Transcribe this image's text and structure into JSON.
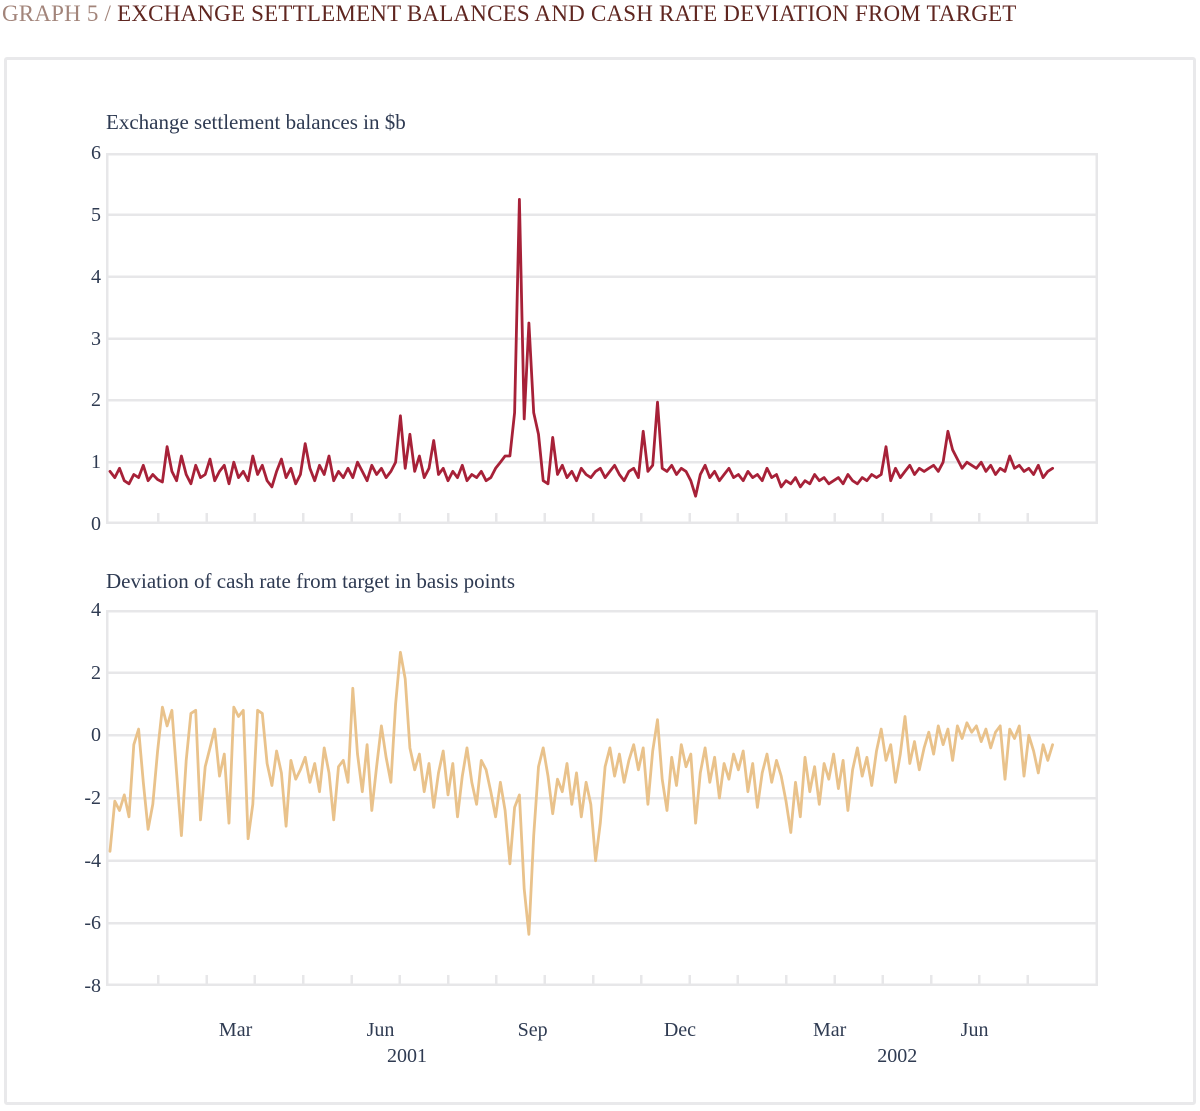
{
  "title": {
    "prefix": "GRAPH 5 /",
    "main": "EXCHANGE SETTLEMENT BALANCES AND CASH RATE DEVIATION FROM TARGET"
  },
  "colors": {
    "title_prefix": "#A2847A",
    "title_main": "#5F2620",
    "axis_text": "#2F3B52",
    "grid": "#E7E7E9",
    "frame_border": "#E9E9EB",
    "series_top": "#A72138",
    "series_bottom": "#E9C28B"
  },
  "x_axis": {
    "unit": "months, Jan 2001 - Aug 2002",
    "minor_tick_months_from_jan2001": [
      1,
      2,
      3,
      4,
      5,
      6,
      7,
      8,
      9,
      10,
      11,
      12,
      13,
      14,
      15,
      16,
      17,
      18,
      19
    ],
    "month_labels": [
      {
        "text": "Mar",
        "m": 2.6
      },
      {
        "text": "Jun",
        "m": 5.6
      },
      {
        "text": "Sep",
        "m": 8.75
      },
      {
        "text": "Dec",
        "m": 11.8
      },
      {
        "text": "Mar",
        "m": 14.9
      },
      {
        "text": "Jun",
        "m": 17.9
      }
    ],
    "year_labels": [
      {
        "text": "2001",
        "m": 6.15
      },
      {
        "text": "2002",
        "m": 16.3
      }
    ]
  },
  "chart_data": [
    {
      "type": "line",
      "title": "Exchange settlement balances in $b",
      "ylim": [
        0,
        6
      ],
      "yticks": [
        6,
        5,
        4,
        3,
        2,
        1,
        0
      ],
      "grid": true,
      "legend": "none",
      "x_unit": "days since 1 Jan 2001",
      "x_start_day": 0,
      "x_step_days": 3,
      "series": [
        {
          "name": "Exchange settlement balances ($b)",
          "color_key": "series_top",
          "values": [
            0.85,
            0.75,
            0.9,
            0.7,
            0.65,
            0.8,
            0.75,
            0.95,
            0.7,
            0.8,
            0.72,
            0.68,
            1.25,
            0.85,
            0.7,
            1.1,
            0.8,
            0.65,
            0.95,
            0.75,
            0.8,
            1.05,
            0.7,
            0.85,
            0.95,
            0.65,
            1.0,
            0.75,
            0.85,
            0.7,
            1.1,
            0.8,
            0.95,
            0.7,
            0.6,
            0.85,
            1.05,
            0.75,
            0.9,
            0.65,
            0.8,
            1.3,
            0.9,
            0.7,
            0.95,
            0.8,
            1.1,
            0.7,
            0.85,
            0.75,
            0.9,
            0.75,
            1.0,
            0.85,
            0.7,
            0.95,
            0.8,
            0.9,
            0.75,
            0.85,
            1.0,
            1.75,
            0.9,
            1.45,
            0.85,
            1.1,
            0.75,
            0.9,
            1.35,
            0.8,
            0.9,
            0.7,
            0.85,
            0.75,
            0.95,
            0.7,
            0.8,
            0.75,
            0.85,
            0.7,
            0.75,
            0.9,
            1.0,
            1.1,
            1.1,
            1.8,
            5.25,
            1.7,
            3.25,
            1.8,
            1.45,
            0.7,
            0.65,
            1.4,
            0.8,
            0.95,
            0.75,
            0.85,
            0.7,
            0.9,
            0.8,
            0.75,
            0.85,
            0.9,
            0.75,
            0.85,
            0.95,
            0.8,
            0.7,
            0.85,
            0.9,
            0.75,
            1.5,
            0.85,
            0.95,
            1.97,
            0.9,
            0.85,
            0.95,
            0.8,
            0.9,
            0.85,
            0.7,
            0.45,
            0.8,
            0.95,
            0.75,
            0.85,
            0.7,
            0.8,
            0.9,
            0.75,
            0.8,
            0.7,
            0.85,
            0.75,
            0.8,
            0.7,
            0.9,
            0.75,
            0.8,
            0.6,
            0.7,
            0.65,
            0.75,
            0.6,
            0.7,
            0.65,
            0.8,
            0.7,
            0.75,
            0.65,
            0.7,
            0.75,
            0.65,
            0.8,
            0.7,
            0.65,
            0.75,
            0.7,
            0.8,
            0.75,
            0.8,
            1.25,
            0.7,
            0.9,
            0.75,
            0.85,
            0.95,
            0.8,
            0.9,
            0.85,
            0.9,
            0.95,
            0.85,
            1.0,
            1.5,
            1.2,
            1.05,
            0.9,
            1.0,
            0.95,
            0.9,
            1.0,
            0.85,
            0.95,
            0.8,
            0.9,
            0.85,
            1.1,
            0.9,
            0.95,
            0.85,
            0.9,
            0.8,
            0.95,
            0.75,
            0.85,
            0.9
          ]
        }
      ]
    },
    {
      "type": "line",
      "title": "Deviation of cash rate from target in basis points",
      "ylim": [
        -8,
        4
      ],
      "yticks": [
        4,
        2,
        0,
        -2,
        -4,
        -6,
        -8
      ],
      "grid": true,
      "legend": "none",
      "x_unit": "days since 1 Jan 2001",
      "x_start_day": 0,
      "x_step_days": 3,
      "series": [
        {
          "name": "Cash rate deviation from target (basis points)",
          "color_key": "series_bottom",
          "values": [
            -3.7,
            -2.1,
            -2.4,
            -1.9,
            -2.6,
            -0.3,
            0.2,
            -1.5,
            -3.0,
            -2.2,
            -0.5,
            0.9,
            0.3,
            0.8,
            -1.2,
            -3.2,
            -0.8,
            0.7,
            0.8,
            -2.7,
            -1.0,
            -0.4,
            0.2,
            -1.3,
            -0.6,
            -2.8,
            0.9,
            0.6,
            0.8,
            -3.3,
            -2.2,
            0.8,
            0.7,
            -0.9,
            -1.6,
            -0.5,
            -1.2,
            -2.9,
            -0.8,
            -1.4,
            -1.1,
            -0.7,
            -1.5,
            -0.9,
            -1.8,
            -0.4,
            -1.2,
            -2.7,
            -1.0,
            -0.8,
            -1.5,
            1.5,
            -0.6,
            -1.8,
            -0.3,
            -2.4,
            -1.0,
            0.3,
            -0.7,
            -1.5,
            1.0,
            2.65,
            1.8,
            -0.4,
            -1.1,
            -0.6,
            -1.8,
            -0.9,
            -2.3,
            -1.2,
            -0.5,
            -1.9,
            -0.9,
            -2.6,
            -1.3,
            -0.4,
            -1.5,
            -2.2,
            -0.8,
            -1.1,
            -1.8,
            -2.6,
            -1.5,
            -2.4,
            -4.1,
            -2.3,
            -1.9,
            -4.9,
            -6.35,
            -3.2,
            -1.0,
            -0.4,
            -1.3,
            -2.5,
            -1.4,
            -1.8,
            -0.9,
            -2.2,
            -1.2,
            -2.6,
            -1.5,
            -2.2,
            -4.0,
            -2.8,
            -1.0,
            -0.4,
            -1.3,
            -0.6,
            -1.5,
            -0.8,
            -0.3,
            -1.1,
            -0.4,
            -2.2,
            -0.5,
            0.5,
            -1.4,
            -2.4,
            -0.7,
            -1.6,
            -0.3,
            -1.0,
            -0.6,
            -2.8,
            -1.2,
            -0.4,
            -1.5,
            -0.7,
            -2.0,
            -0.9,
            -1.4,
            -0.6,
            -1.1,
            -0.5,
            -1.8,
            -0.9,
            -2.3,
            -1.2,
            -0.6,
            -1.5,
            -0.8,
            -1.3,
            -2.1,
            -3.1,
            -1.5,
            -2.6,
            -0.7,
            -1.8,
            -1.0,
            -2.2,
            -0.9,
            -1.4,
            -0.6,
            -1.7,
            -0.8,
            -2.4,
            -1.1,
            -0.4,
            -1.3,
            -0.7,
            -1.6,
            -0.5,
            0.2,
            -0.8,
            -0.3,
            -1.5,
            -0.6,
            0.6,
            -0.9,
            -0.2,
            -1.1,
            -0.4,
            0.1,
            -0.6,
            0.3,
            -0.3,
            0.2,
            -0.8,
            0.3,
            -0.1,
            0.4,
            0.1,
            0.3,
            -0.2,
            0.2,
            -0.4,
            0.1,
            0.3,
            -1.4,
            0.2,
            -0.1,
            0.3,
            -1.3,
            0.0,
            -0.5,
            -1.2,
            -0.3,
            -0.8,
            -0.3
          ]
        }
      ]
    }
  ]
}
